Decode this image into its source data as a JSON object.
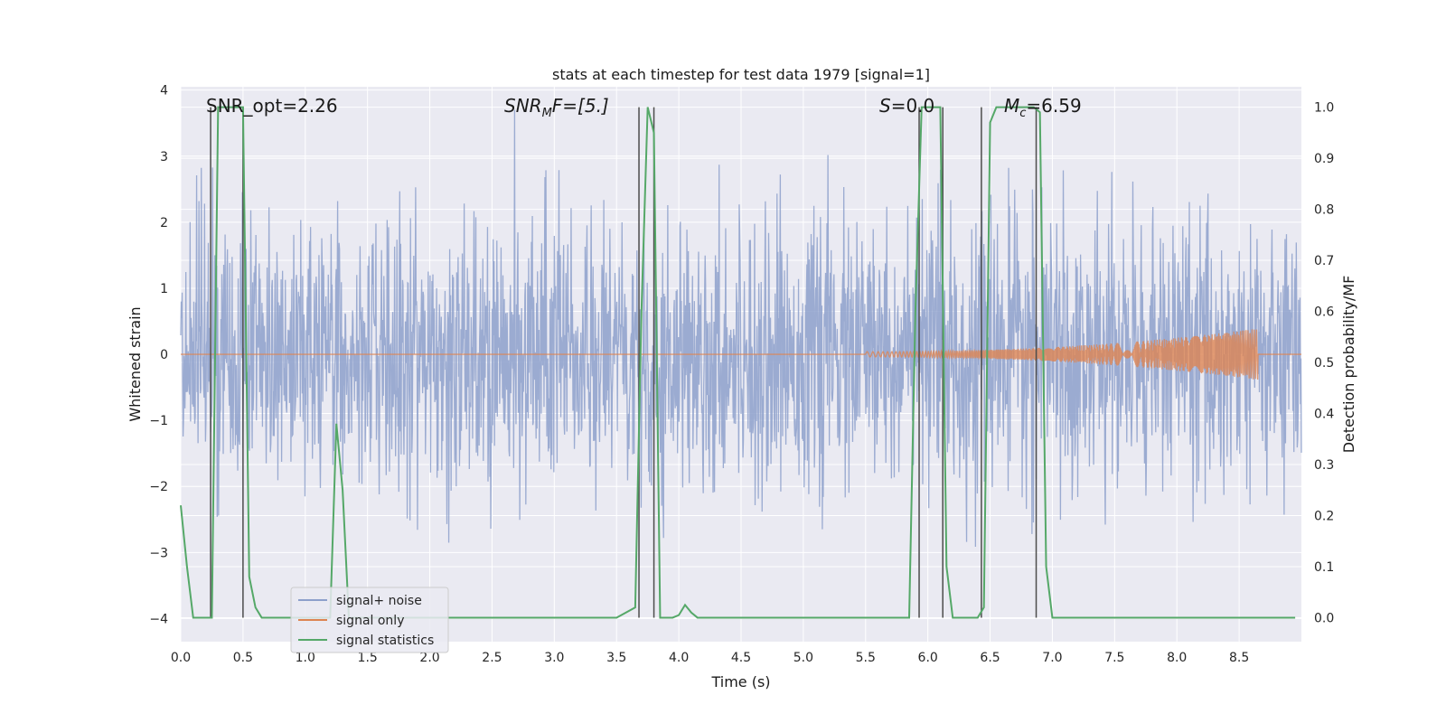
{
  "chart_data": {
    "type": "line",
    "title": "stats at each timestep for test data 1979 [signal=1]",
    "xlabel": "Time (s)",
    "ylabel_left": "Whitened strain",
    "ylabel_right": "Detection probability/MF",
    "xlim": [
      0.0,
      9.0
    ],
    "ylim_left": [
      -4.35,
      4.05
    ],
    "ylim_right": [
      -0.047,
      1.04
    ],
    "x_ticks": [
      "0.0",
      "0.5",
      "1.0",
      "1.5",
      "2.0",
      "2.5",
      "3.0",
      "3.5",
      "4.0",
      "4.5",
      "5.0",
      "5.5",
      "6.0",
      "6.5",
      "7.0",
      "7.5",
      "8.0",
      "8.5"
    ],
    "y_ticks_left": [
      "4",
      "3",
      "2",
      "1",
      "0",
      "−1",
      "−2",
      "−3",
      "−4"
    ],
    "y_ticks_right": [
      "1.0",
      "0.9",
      "0.8",
      "0.7",
      "0.6",
      "0.5",
      "0.4",
      "0.3",
      "0.2",
      "0.1",
      "0.0"
    ],
    "annotations": {
      "snr_opt": "SNR_opt=2.26",
      "snr_mf_main": "SNR",
      "snr_mf_sub": "M",
      "snr_mf_rest": "F=[5.]",
      "s_main": "S",
      "s_rest": "=0.0",
      "mc_main": "M",
      "mc_sub": "c",
      "mc_rest": "=6.59"
    },
    "legend": {
      "position": "lower-left",
      "entries": [
        "signal+ noise",
        "signal only",
        "signal statistics"
      ]
    },
    "colors": {
      "noise": "#8da0cb",
      "signal": "#dd8452",
      "stats": "#55a868",
      "vlines": "#4c4c4c",
      "bg": "#eaeaf2",
      "grid": "#ffffff"
    },
    "series": [
      {
        "name": "signal+ noise",
        "axis": "left",
        "description": "whitened noisy strain, roughly Gaussian with std ~1.0, spans about -3.9 to 3.7",
        "std": 1.0
      },
      {
        "name": "signal only",
        "axis": "left",
        "description": "chirp signal, near zero until ~5.5 s, growing amplitude to ~0.35 at 8.65 s then zero",
        "chirp_start": 5.5,
        "chirp_end": 8.65,
        "peak_amplitude": 0.35
      },
      {
        "name": "signal statistics",
        "axis": "right",
        "x": [
          0.0,
          0.05,
          0.1,
          0.25,
          0.3,
          0.5,
          0.55,
          0.6,
          0.65,
          0.7,
          0.75,
          1.0,
          1.2,
          1.25,
          1.3,
          1.35,
          1.5,
          2.0,
          2.5,
          3.0,
          3.5,
          3.65,
          3.7,
          3.75,
          3.8,
          3.85,
          3.9,
          3.95,
          4.0,
          4.05,
          4.1,
          4.15,
          4.2,
          5.0,
          5.5,
          5.85,
          5.9,
          5.95,
          6.0,
          6.1,
          6.15,
          6.2,
          6.4,
          6.45,
          6.5,
          6.55,
          6.6,
          6.65,
          6.85,
          6.9,
          6.95,
          7.0,
          7.5,
          8.0,
          8.5,
          8.95
        ],
        "y": [
          0.22,
          0.1,
          0.0,
          0.0,
          1.0,
          1.0,
          0.08,
          0.02,
          0.0,
          0.0,
          0.0,
          0.0,
          0.0,
          0.38,
          0.25,
          0.0,
          0.0,
          0.0,
          0.0,
          0.0,
          0.0,
          0.02,
          0.6,
          1.0,
          0.95,
          0.0,
          0.0,
          0.0,
          0.005,
          0.025,
          0.01,
          0.0,
          0.0,
          0.0,
          0.0,
          0.0,
          0.6,
          1.0,
          1.0,
          1.0,
          0.1,
          0.0,
          0.0,
          0.02,
          0.97,
          1.0,
          1.0,
          1.0,
          1.0,
          0.99,
          0.1,
          0.0,
          0.0,
          0.0,
          0.0,
          0.0
        ]
      }
    ],
    "vertical_lines_x": [
      0.24,
      0.5,
      3.68,
      3.8,
      5.93,
      6.12,
      6.43,
      6.87
    ]
  }
}
